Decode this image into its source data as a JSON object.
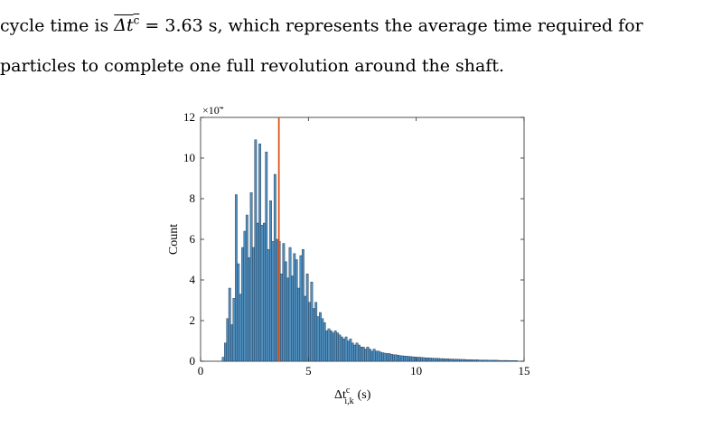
{
  "text": {
    "line1_pre": "cycle time is ",
    "symbol_base": "Δt",
    "symbol_sup": "c",
    "line1_eq": " = 3.63 s, which represents the average time required for",
    "line2": "particles to complete one full revolution around the shaft."
  },
  "chart_data": {
    "type": "bar",
    "xlabel_base": "Δt",
    "xlabel_sup": "c",
    "xlabel_sub": "i,k",
    "xlabel_unit": "(s)",
    "ylabel": "Count",
    "y_exponent_base": "×10",
    "y_exponent_power": "4",
    "xlim": [
      0,
      15
    ],
    "ylim": [
      0,
      12
    ],
    "x_ticks": [
      0,
      5,
      10,
      15
    ],
    "y_ticks": [
      0,
      2,
      4,
      6,
      8,
      10,
      12
    ],
    "bin_width": 0.1,
    "bin_start": 1.0,
    "mean_line": 3.63,
    "bar_color": "#4f8fbf",
    "bar_edge": "#1f2f44",
    "mean_color": "#d95319",
    "values": [
      0.2,
      0.9,
      2.1,
      3.6,
      1.8,
      3.1,
      8.2,
      4.8,
      3.3,
      5.6,
      6.4,
      7.2,
      5.1,
      8.3,
      5.6,
      10.9,
      6.8,
      10.7,
      6.7,
      6.8,
      10.3,
      5.5,
      7.9,
      5.9,
      9.2,
      6.0,
      5.9,
      4.3,
      5.8,
      4.9,
      4.1,
      5.6,
      4.2,
      5.3,
      5.0,
      3.6,
      5.2,
      5.5,
      3.2,
      4.3,
      2.9,
      3.9,
      2.6,
      2.9,
      2.2,
      2.4,
      2.1,
      1.9,
      1.5,
      1.6,
      1.5,
      1.4,
      1.5,
      1.4,
      1.3,
      1.2,
      1.1,
      1.2,
      1.0,
      1.1,
      0.9,
      0.8,
      0.9,
      0.8,
      0.7,
      0.7,
      0.6,
      0.7,
      0.6,
      0.5,
      0.6,
      0.5,
      0.5,
      0.45,
      0.42,
      0.4,
      0.38,
      0.38,
      0.35,
      0.32,
      0.32,
      0.3,
      0.28,
      0.27,
      0.26,
      0.25,
      0.24,
      0.23,
      0.22,
      0.21,
      0.2,
      0.2,
      0.19,
      0.18,
      0.17,
      0.17,
      0.16,
      0.15,
      0.15,
      0.14,
      0.14,
      0.13,
      0.13,
      0.12,
      0.12,
      0.11,
      0.11,
      0.1,
      0.1,
      0.1,
      0.09,
      0.09,
      0.09,
      0.08,
      0.08,
      0.08,
      0.07,
      0.07,
      0.07,
      0.06,
      0.06,
      0.06,
      0.06,
      0.05,
      0.05,
      0.05,
      0.05,
      0.05,
      0.04,
      0.04,
      0.04,
      0.04,
      0.04,
      0.03,
      0.03,
      0.03,
      0.03
    ]
  }
}
